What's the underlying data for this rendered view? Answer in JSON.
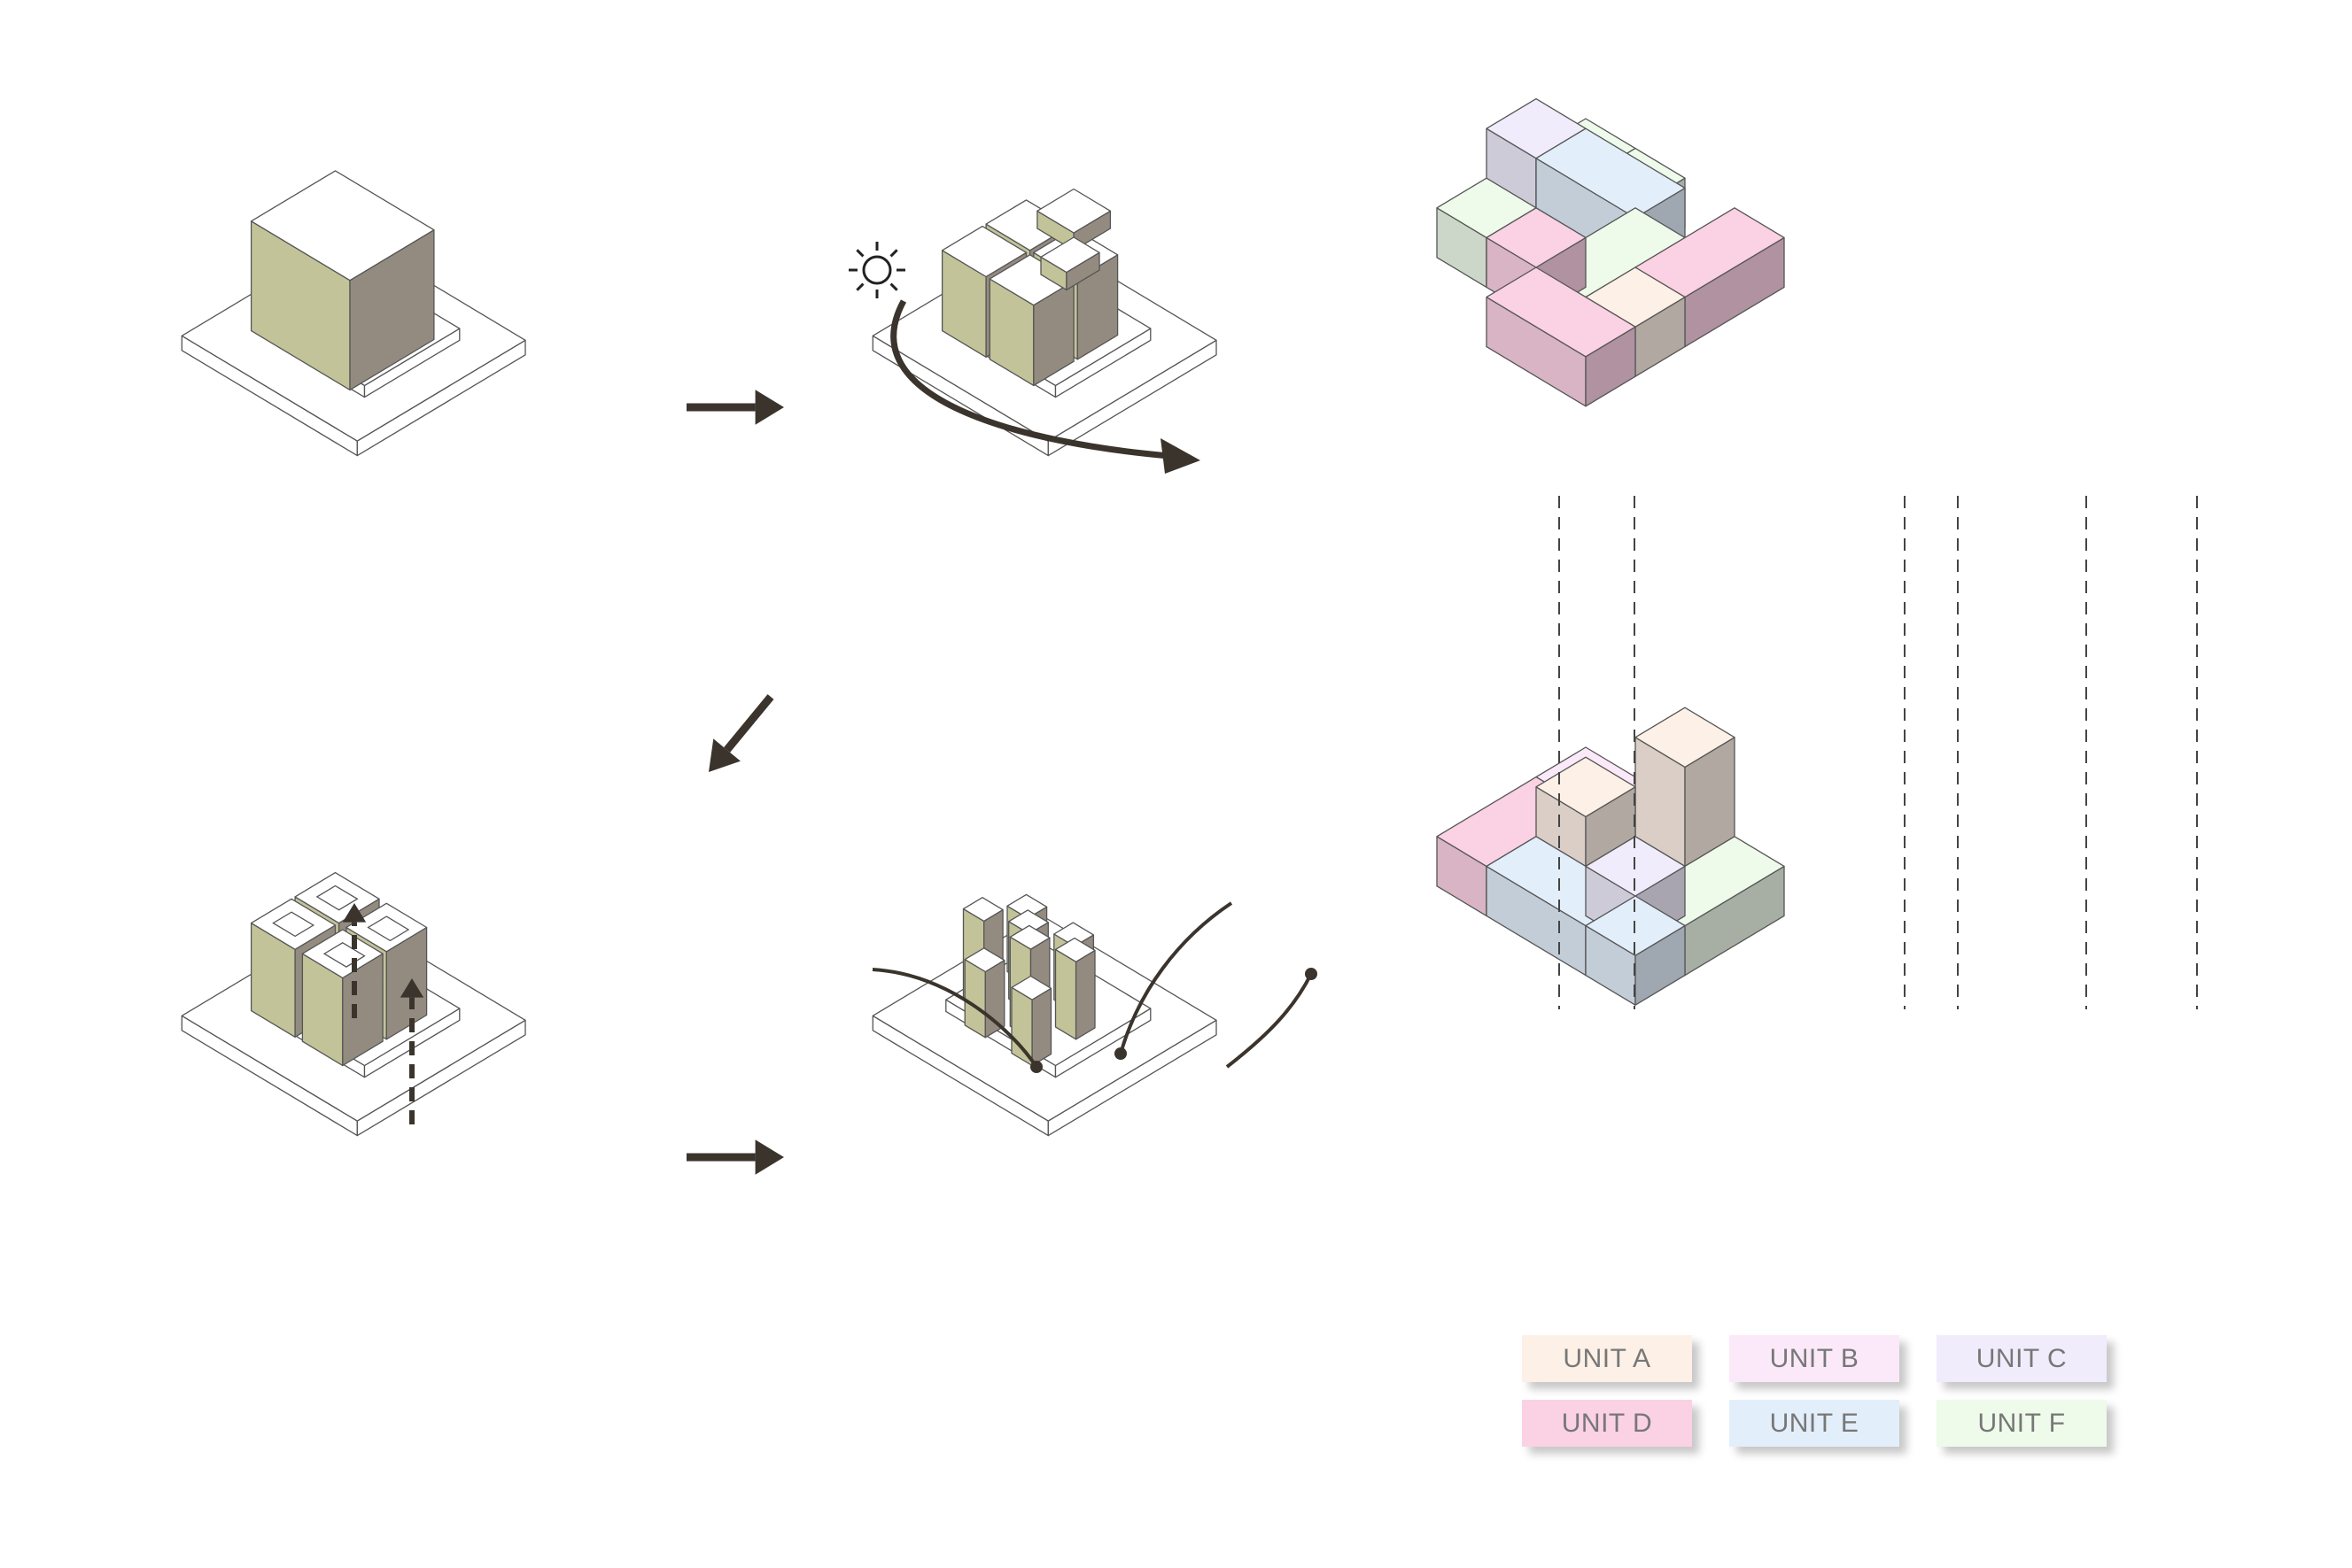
{
  "colors": {
    "background": "#ffffff",
    "line": "#555555",
    "mass_left": "#c3c39a",
    "mass_right": "#948b80",
    "mass_top": "#ffffff",
    "arrow": "#3a342d"
  },
  "icons": [
    "sun-icon",
    "arrow-right-icon",
    "arrow-down-left-icon",
    "dashed-up-arrow-icon",
    "curved-arrow-icon"
  ],
  "legend": [
    {
      "label": "UNIT A",
      "color": "#fdf0e6"
    },
    {
      "label": "UNIT B",
      "color": "#fbe9fa"
    },
    {
      "label": "UNIT C",
      "color": "#f0ecfb"
    },
    {
      "label": "UNIT D",
      "color": "#fbd1e4"
    },
    {
      "label": "UNIT E",
      "color": "#e3eefb"
    },
    {
      "label": "UNIT F",
      "color": "#eefaea"
    }
  ]
}
